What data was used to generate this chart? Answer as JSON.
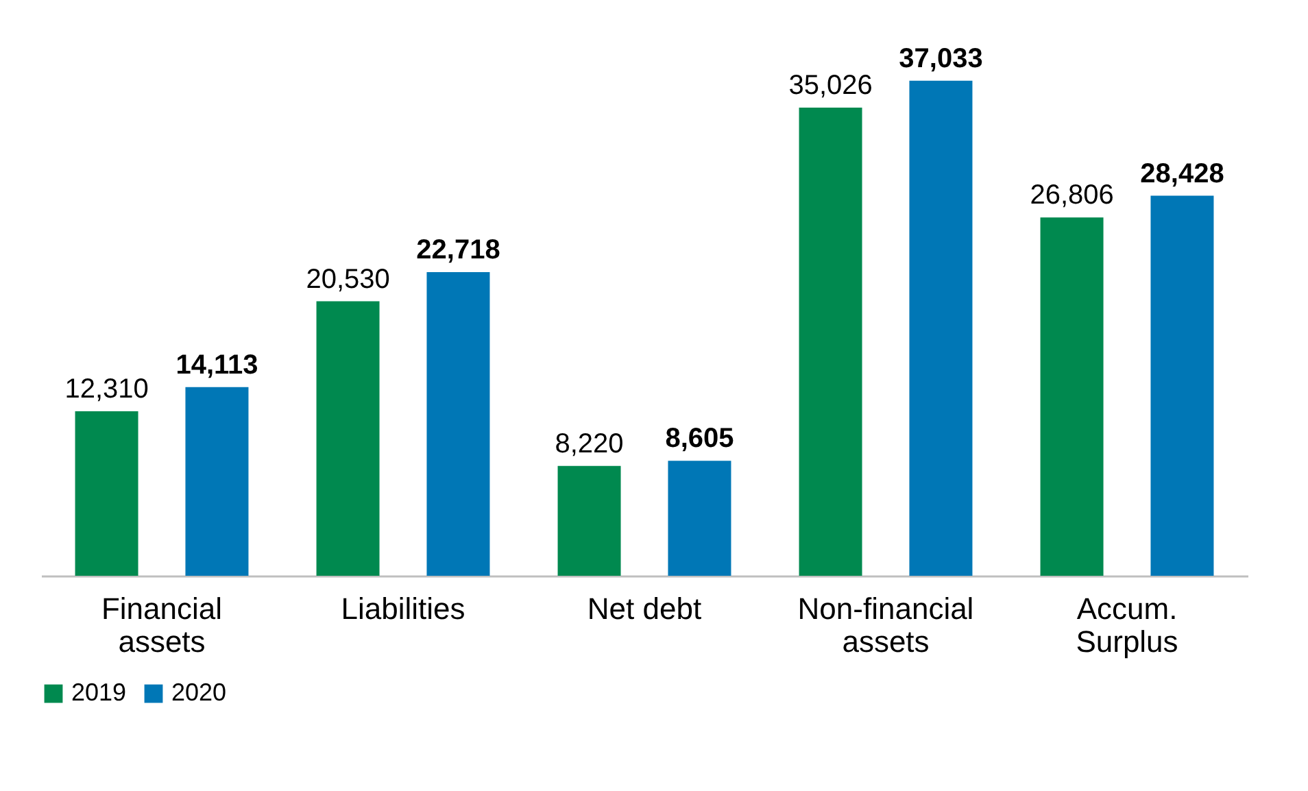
{
  "chart_data": {
    "type": "bar",
    "categories": [
      "Financial assets",
      "Liabilities",
      "Net debt",
      "Non-financial assets",
      "Accum. Surplus"
    ],
    "series": [
      {
        "name": "2019",
        "color": "#00894f",
        "values": [
          12310,
          20530,
          8220,
          35026,
          26806
        ],
        "value_labels": [
          "12,310",
          "20,530",
          "8,220",
          "35,026",
          "26,806"
        ]
      },
      {
        "name": "2020",
        "color": "#0077b6",
        "values": [
          14113,
          22718,
          8605,
          37033,
          28428
        ],
        "value_labels": [
          "14,113",
          "22,718",
          "8,605",
          "37,033",
          "28,428"
        ]
      }
    ],
    "legend": "bottom",
    "grid": false
  }
}
